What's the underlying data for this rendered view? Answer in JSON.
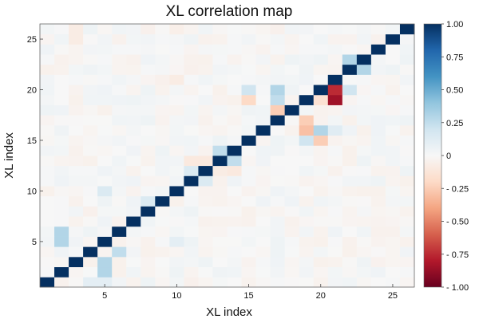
{
  "chart_data": {
    "type": "heatmap",
    "title": "XL correlation map",
    "xlabel": "XL index",
    "ylabel": "XL index",
    "n": 26,
    "xlim": [
      1,
      26
    ],
    "ylim": [
      1,
      26
    ],
    "x_ticks": [
      5,
      10,
      15,
      20,
      25
    ],
    "y_ticks": [
      5,
      10,
      15,
      20,
      25
    ],
    "colorbar": {
      "range": [
        -1.0,
        1.0
      ],
      "tick_values": [
        1.0,
        0.75,
        0.5,
        0.25,
        0,
        -0.25,
        -0.5,
        -0.75,
        -1.0
      ],
      "tick_labels": [
        "1.00",
        "0.75",
        "0.50",
        "0.25",
        "0",
        "- 0.25",
        "- 0.50",
        "- 0.75",
        "- 1.00"
      ],
      "colormap": "RdBu",
      "colors": [
        "#67001f",
        "#b2182b",
        "#d6604d",
        "#f4a582",
        "#fddbc7",
        "#f7f7f7",
        "#d1e5f0",
        "#92c5de",
        "#4393c3",
        "#2166ac",
        "#053061"
      ]
    },
    "diagonal_value": 1.0,
    "notable_cells": [
      {
        "row": 19,
        "col": 21,
        "value": -0.85
      },
      {
        "row": 20,
        "col": 21,
        "value": -0.75
      },
      {
        "row": 20,
        "col": 22,
        "value": 0.2
      },
      {
        "row": 19,
        "col": 20,
        "value": -0.15
      },
      {
        "row": 17,
        "col": 19,
        "value": -0.25
      },
      {
        "row": 16,
        "col": 19,
        "value": -0.3
      },
      {
        "row": 16,
        "col": 20,
        "value": 0.3
      },
      {
        "row": 16,
        "col": 21,
        "value": 0.12
      },
      {
        "row": 18,
        "col": 17,
        "value": -0.25
      },
      {
        "row": 15,
        "col": 19,
        "value": 0.2
      },
      {
        "row": 15,
        "col": 20,
        "value": -0.25
      },
      {
        "row": 19,
        "col": 15,
        "value": -0.2
      },
      {
        "row": 19,
        "col": 17,
        "value": 0.25
      },
      {
        "row": 20,
        "col": 15,
        "value": 0.2
      },
      {
        "row": 20,
        "col": 17,
        "value": 0.3
      },
      {
        "row": 22,
        "col": 23,
        "value": 0.3
      },
      {
        "row": 23,
        "col": 22,
        "value": 0.3
      },
      {
        "row": 4,
        "col": 6,
        "value": 0.25
      },
      {
        "row": 5,
        "col": 2,
        "value": 0.3
      },
      {
        "row": 6,
        "col": 2,
        "value": 0.3
      },
      {
        "row": 3,
        "col": 5,
        "value": 0.3
      },
      {
        "row": 2,
        "col": 5,
        "value": 0.3
      },
      {
        "row": 10,
        "col": 5,
        "value": 0.15
      },
      {
        "row": 14,
        "col": 13,
        "value": 0.25
      },
      {
        "row": 13,
        "col": 14,
        "value": 0.25
      },
      {
        "row": 11,
        "col": 12,
        "value": 0.15
      },
      {
        "row": 12,
        "col": 11,
        "value": 0.15
      },
      {
        "row": 9,
        "col": 8,
        "value": 0.15
      },
      {
        "row": 12,
        "col": 12,
        "value": 1.0
      },
      {
        "row": 1,
        "col": 4,
        "value": 0.1
      },
      {
        "row": 1,
        "col": 5,
        "value": 0.1
      },
      {
        "row": 5,
        "col": 10,
        "value": 0.1
      },
      {
        "row": 13,
        "col": 11,
        "value": -0.1
      },
      {
        "row": 13,
        "col": 12,
        "value": -0.1
      },
      {
        "row": 12,
        "col": 13,
        "value": -0.08
      },
      {
        "row": 12,
        "col": 14,
        "value": -0.1
      },
      {
        "row": 25,
        "col": 3,
        "value": -0.08
      },
      {
        "row": 26,
        "col": 3,
        "value": -0.08
      },
      {
        "row": 21,
        "col": 10,
        "value": -0.08
      },
      {
        "row": 26,
        "col": 10,
        "value": -0.06
      }
    ],
    "background_noise_amplitude": 0.08
  }
}
